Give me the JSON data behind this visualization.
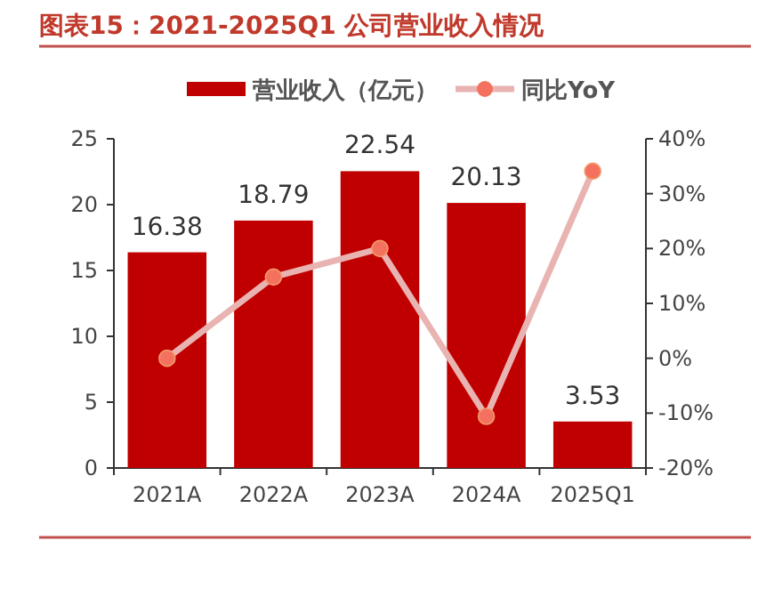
{
  "chart_data": {
    "type": "bar",
    "title": "图表15：2021-2025Q1 公司营业收入情况",
    "categories": [
      "2021A",
      "2022A",
      "2023A",
      "2024A",
      "2025Q1"
    ],
    "series": [
      {
        "name": "营业收入（亿元）",
        "color": "#c00000",
        "values": [
          16.38,
          18.79,
          22.54,
          20.13,
          3.53
        ],
        "value_labels": [
          "16.38",
          "18.79",
          "22.54",
          "20.13",
          "3.53"
        ]
      },
      {
        "name": "同比YoY",
        "type": "line",
        "axis": "y2",
        "color": "#e8b3b1",
        "marker": "circle",
        "values": [
          0,
          14.8,
          20.0,
          -10.6,
          34.1
        ]
      }
    ],
    "ylim": [
      0,
      25
    ],
    "yticks": [
      0,
      5,
      10,
      15,
      20,
      25
    ],
    "y2lim": [
      -20,
      40
    ],
    "y2ticks": [
      {
        "value": -20,
        "label": "-20%"
      },
      {
        "value": -10,
        "label": "-10%"
      },
      {
        "value": 0,
        "label": "0%"
      },
      {
        "value": 10,
        "label": "10%"
      },
      {
        "value": 20,
        "label": "20%"
      },
      {
        "value": 30,
        "label": "30%"
      },
      {
        "value": 40,
        "label": "40%"
      }
    ],
    "legend": "top",
    "grid": false
  }
}
